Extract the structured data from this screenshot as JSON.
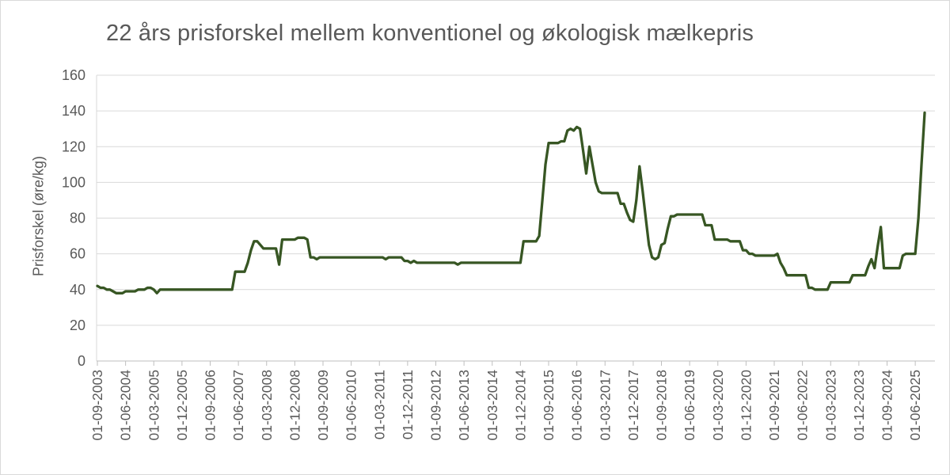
{
  "colors": {
    "line": "#375623",
    "gridline": "#d9d9d9",
    "axis": "#bfbfbf",
    "text": "#595959",
    "background": "#ffffff",
    "border": "#d9d9d9"
  },
  "chart_data": {
    "type": "line",
    "title": "22 års prisforskel mellem konventionel og økologisk mælkepris",
    "xlabel": "",
    "ylabel": "Prisforskel (øre/kg)",
    "unit": "øre/kg",
    "ylim": [
      0,
      160
    ],
    "y_ticks": [
      0,
      20,
      40,
      60,
      80,
      100,
      120,
      140,
      160
    ],
    "grid": "horizontal",
    "legend": "none",
    "frequency": "monthly",
    "x_start": "01-09-2003",
    "x_end": "01-09-2025",
    "x_tick_every_n_points": 9,
    "x_tick_labels": [
      "01-09-2003",
      "01-06-2004",
      "01-03-2005",
      "01-12-2005",
      "01-09-2006",
      "01-06-2007",
      "01-03-2008",
      "01-12-2008",
      "01-09-2009",
      "01-06-2010",
      "01-03-2011",
      "01-12-2011",
      "01-09-2012",
      "01-06-2013",
      "01-03-2014",
      "01-12-2014",
      "01-09-2015",
      "01-06-2016",
      "01-03-2017",
      "01-12-2017",
      "01-09-2018",
      "01-06-2019",
      "01-03-2020",
      "01-12-2020",
      "01-09-2021",
      "01-06-2022",
      "01-03-2023",
      "01-12-2023",
      "01-09-2024",
      "01-06-2025"
    ],
    "values": [
      42,
      41,
      41,
      40,
      40,
      39,
      38,
      38,
      38,
      39,
      39,
      39,
      39,
      40,
      40,
      40,
      41,
      41,
      40,
      38,
      40,
      40,
      40,
      40,
      40,
      40,
      40,
      40,
      40,
      40,
      40,
      40,
      40,
      40,
      40,
      40,
      40,
      40,
      40,
      40,
      40,
      40,
      40,
      40,
      50,
      50,
      50,
      50,
      55,
      62,
      67,
      67,
      65,
      63,
      63,
      63,
      63,
      63,
      54,
      68,
      68,
      68,
      68,
      68,
      69,
      69,
      69,
      68,
      58,
      58,
      57,
      58,
      58,
      58,
      58,
      58,
      58,
      58,
      58,
      58,
      58,
      58,
      58,
      58,
      58,
      58,
      58,
      58,
      58,
      58,
      58,
      58,
      57,
      58,
      58,
      58,
      58,
      58,
      56,
      56,
      55,
      56,
      55,
      55,
      55,
      55,
      55,
      55,
      55,
      55,
      55,
      55,
      55,
      55,
      55,
      54,
      55,
      55,
      55,
      55,
      55,
      55,
      55,
      55,
      55,
      55,
      55,
      55,
      55,
      55,
      55,
      55,
      55,
      55,
      55,
      55,
      67,
      67,
      67,
      67,
      67,
      70,
      90,
      110,
      122,
      122,
      122,
      122,
      123,
      123,
      129,
      130,
      129,
      131,
      130,
      118,
      105,
      120,
      110,
      100,
      95,
      94,
      94,
      94,
      94,
      94,
      94,
      88,
      88,
      83,
      79,
      78,
      90,
      109,
      95,
      80,
      65,
      58,
      57,
      58,
      65,
      66,
      74,
      81,
      81,
      82,
      82,
      82,
      82,
      82,
      82,
      82,
      82,
      82,
      76,
      76,
      76,
      68,
      68,
      68,
      68,
      68,
      67,
      67,
      67,
      67,
      62,
      62,
      60,
      60,
      59,
      59,
      59,
      59,
      59,
      59,
      59,
      60,
      55,
      52,
      48,
      48,
      48,
      48,
      48,
      48,
      48,
      41,
      41,
      40,
      40,
      40,
      40,
      40,
      44,
      44,
      44,
      44,
      44,
      44,
      44,
      48,
      48,
      48,
      48,
      48,
      53,
      57,
      52,
      64,
      75,
      52,
      52,
      52,
      52,
      52,
      52,
      59,
      60,
      60,
      60,
      60,
      80,
      110,
      139
    ]
  }
}
